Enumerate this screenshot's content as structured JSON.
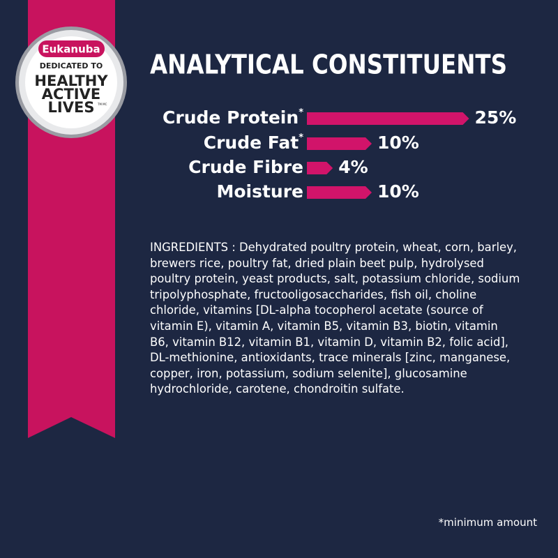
{
  "badge": {
    "brand": "Eukanuba",
    "line1": "DEDICATED TO",
    "line2": "HEALTHY",
    "line3": "ACTIVE",
    "line4": "LIVES",
    "mark": "TM MC"
  },
  "chart_data": {
    "type": "bar",
    "title": "ANALYTICAL CONSTITUENTS",
    "categories": [
      "Crude Protein",
      "Crude Fat",
      "Crude Fibre",
      "Moisture"
    ],
    "category_notes": [
      "*",
      "*",
      null,
      null
    ],
    "values": [
      25,
      10,
      4,
      10
    ],
    "value_labels": [
      "25%",
      "10%",
      "4%",
      "10%"
    ],
    "color": "#d1146a"
  },
  "ingredients": [
    "INGREDIENTS : Dehydrated poultry protein, wheat, corn, barley,",
    "brewers rice, poultry fat, dried plain beet pulp, hydrolysed",
    "poultry protein, yeast products, salt, potassium chloride, sodium",
    "tripolyphosphate, fructooligosaccharides, fish oil, choline",
    "chloride, vitamins [DL-alpha tocopherol acetate (source of",
    "vitamin E), vitamin A, vitamin B5, vitamin B3, biotin, vitamin",
    "B6, vitamin B12, vitamin B1, vitamin D, vitamin B2, folic acid],",
    "DL-methionine, antioxidants, trace minerals [zinc, manganese,",
    "copper, iron, potassium, sodium selenite], glucosamine",
    "hydrochloride, carotene, chondroitin sulfate."
  ],
  "footnote": "*minimum amount"
}
